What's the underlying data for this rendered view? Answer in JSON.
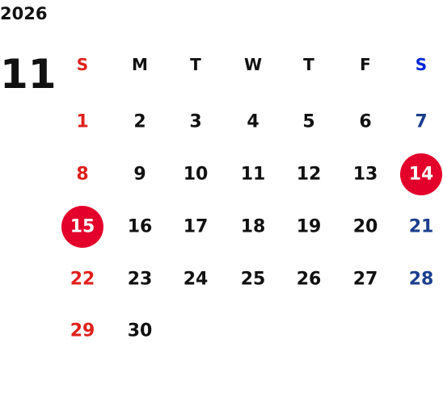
{
  "year": "2026",
  "month": "11",
  "weekdays": [
    "S",
    "M",
    "T",
    "W",
    "T",
    "F",
    "S"
  ],
  "weeks": [
    [
      1,
      2,
      3,
      4,
      5,
      6,
      7
    ],
    [
      8,
      9,
      10,
      11,
      12,
      13,
      14
    ],
    [
      15,
      16,
      17,
      18,
      19,
      20,
      21
    ],
    [
      22,
      23,
      24,
      25,
      26,
      27,
      28
    ],
    [
      29,
      30
    ]
  ],
  "highlighted_days": [
    14,
    15
  ],
  "colors": {
    "sunday": "#e0201c",
    "saturday": "#1b3e8e",
    "saturday_header": "#0026d6",
    "weekday": "#111111",
    "highlight": "#e3002b",
    "highlight_text": "#ffffff"
  }
}
